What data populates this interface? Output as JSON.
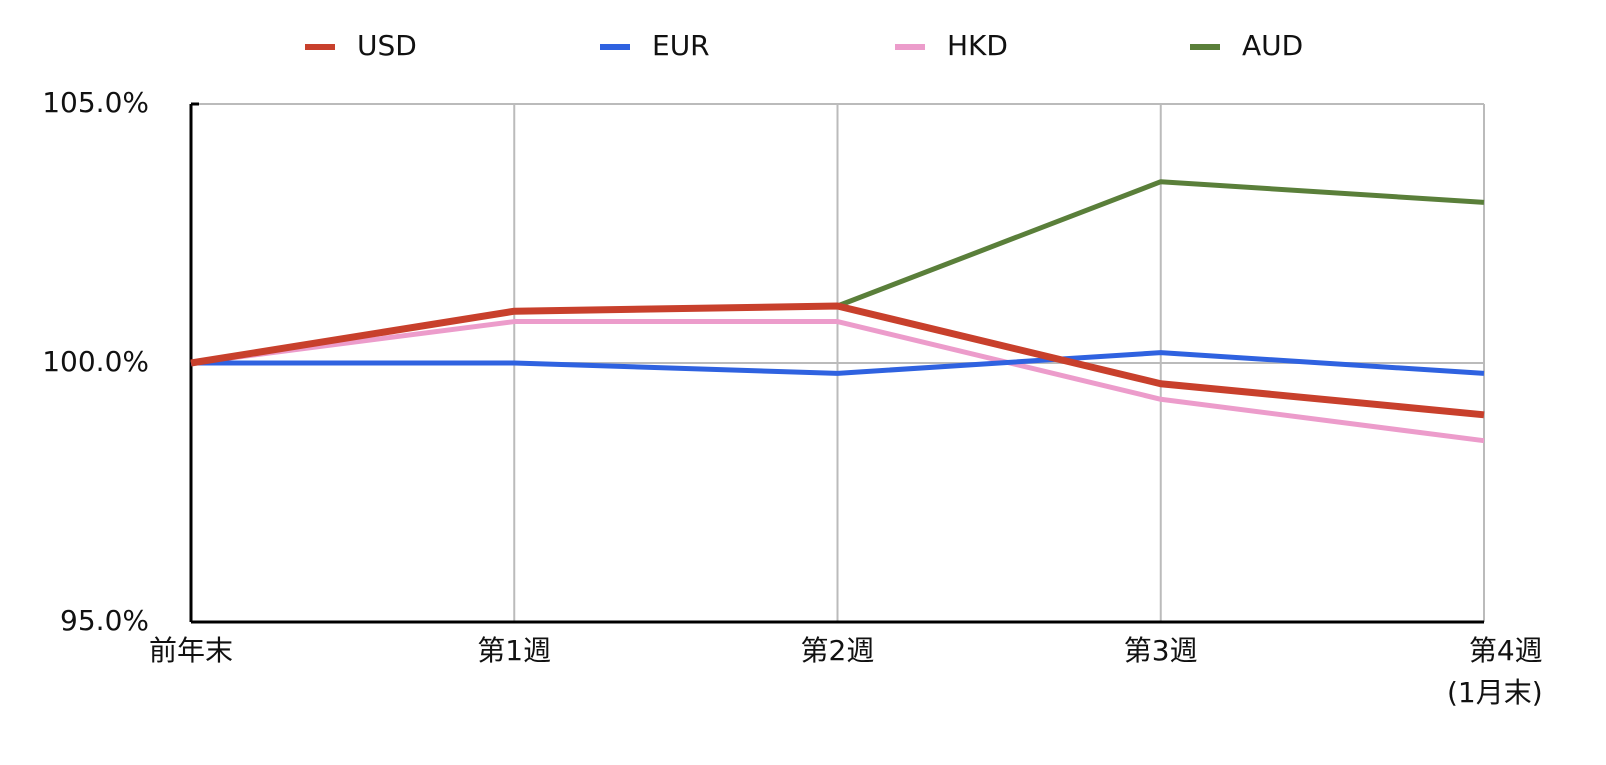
{
  "chart_data": {
    "type": "line",
    "categories": [
      "前年末",
      "第1週",
      "第2週",
      "第3週",
      "第4週\n(1月末)"
    ],
    "series": [
      {
        "name": "USD",
        "color": "#c8402c",
        "values": [
          100.0,
          101.0,
          101.1,
          99.6,
          99.0
        ]
      },
      {
        "name": "EUR",
        "color": "#2f62e0",
        "values": [
          100.0,
          100.0,
          99.8,
          100.2,
          99.8
        ]
      },
      {
        "name": "HKD",
        "color": "#ec9ccb",
        "values": [
          100.0,
          100.8,
          100.8,
          99.3,
          98.5
        ]
      },
      {
        "name": "AUD",
        "color": "#5a7f3a",
        "values": [
          100.0,
          101.0,
          101.1,
          103.5,
          103.1
        ]
      }
    ],
    "ylim": [
      95,
      105
    ],
    "yticks": [
      {
        "value": 95,
        "label": "95.0%"
      },
      {
        "value": 100,
        "label": "100.0%"
      },
      {
        "value": 105,
        "label": "105.0%"
      }
    ],
    "grid": true,
    "legend": "top"
  }
}
